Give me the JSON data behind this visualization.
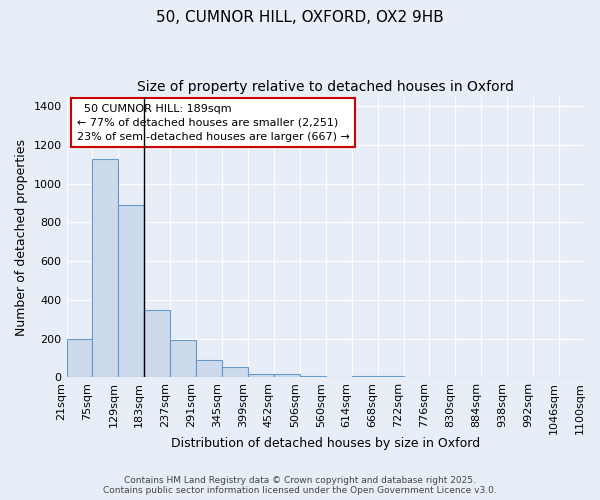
{
  "title_line1": "50, CUMNOR HILL, OXFORD, OX2 9HB",
  "title_line2": "Size of property relative to detached houses in Oxford",
  "xlabel": "Distribution of detached houses by size in Oxford",
  "ylabel": "Number of detached properties",
  "bar_values": [
    200,
    1130,
    890,
    350,
    195,
    90,
    55,
    20,
    20,
    10,
    0,
    10,
    10,
    0,
    0,
    0,
    0,
    0,
    0,
    0
  ],
  "bin_labels": [
    "21sqm",
    "75sqm",
    "129sqm",
    "183sqm",
    "237sqm",
    "291sqm",
    "345sqm",
    "399sqm",
    "452sqm",
    "506sqm",
    "560sqm",
    "614sqm",
    "668sqm",
    "722sqm",
    "776sqm",
    "830sqm",
    "884sqm",
    "938sqm",
    "992sqm",
    "1046sqm",
    "1100sqm"
  ],
  "bar_color": "#ccdaeb",
  "bar_edge_color": "#6699cc",
  "background_color": "#e8eef8",
  "grid_color": "#ffffff",
  "property_line_bin": 3,
  "annotation_text": "  50 CUMNOR HILL: 189sqm\n← 77% of detached houses are smaller (2,251)\n23% of semi-detached houses are larger (667) →",
  "annotation_box_facecolor": "#ffffff",
  "annotation_border_color": "#cc0000",
  "ylim": [
    0,
    1450
  ],
  "yticks": [
    0,
    200,
    400,
    600,
    800,
    1000,
    1200,
    1400
  ],
  "footer_line1": "Contains HM Land Registry data © Crown copyright and database right 2025.",
  "footer_line2": "Contains public sector information licensed under the Open Government Licence v3.0.",
  "title_fontsize": 11,
  "subtitle_fontsize": 10,
  "axis_label_fontsize": 9,
  "tick_fontsize": 8,
  "annotation_fontsize": 8,
  "footer_fontsize": 6.5
}
